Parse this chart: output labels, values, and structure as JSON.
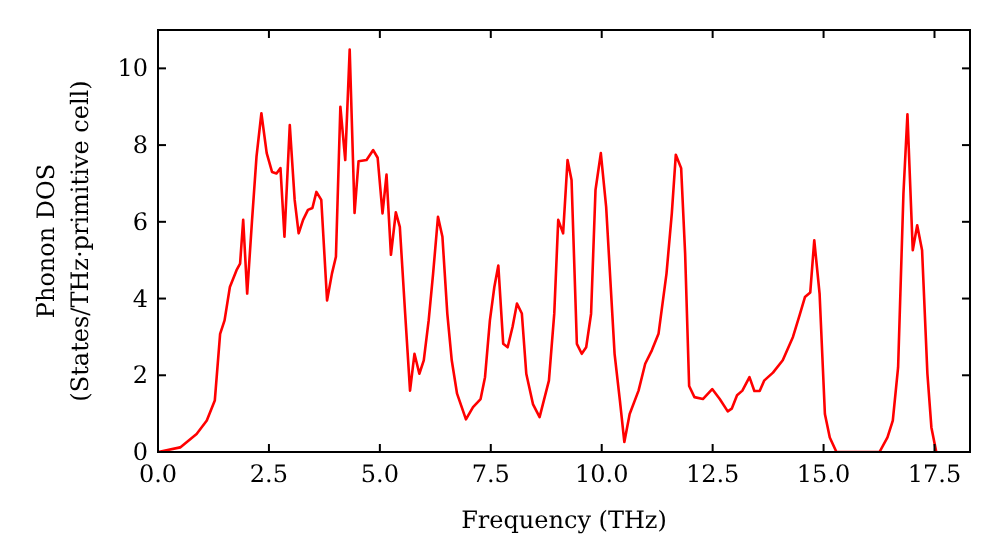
{
  "chart_data": {
    "type": "line",
    "xlabel": "Frequency (THz)",
    "ylabel": "Phonon DOS\n(States/THz·primitive cell)",
    "xlim": [
      0,
      18.3
    ],
    "ylim": [
      0,
      11
    ],
    "xticks": [
      {
        "value": 0,
        "label": "0.0"
      },
      {
        "value": 2.5,
        "label": "2.5"
      },
      {
        "value": 5,
        "label": "5.0"
      },
      {
        "value": 7.5,
        "label": "7.5"
      },
      {
        "value": 10,
        "label": "10.0"
      },
      {
        "value": 12.5,
        "label": "12.5"
      },
      {
        "value": 15,
        "label": "15.0"
      },
      {
        "value": 17.5,
        "label": "17.5"
      }
    ],
    "yticks": [
      0,
      2,
      4,
      6,
      8,
      10
    ],
    "grid": false,
    "marker": "none",
    "line_style": "solid",
    "series": [
      {
        "color": "#ff0000",
        "x": [
          0,
          0.5,
          0.87,
          1.1,
          1.28,
          1.4,
          1.5,
          1.62,
          1.77,
          1.85,
          1.92,
          2.01,
          2.12,
          2.22,
          2.33,
          2.45,
          2.57,
          2.67,
          2.76,
          2.85,
          2.97,
          3.08,
          3.17,
          3.27,
          3.38,
          3.48,
          3.57,
          3.68,
          3.81,
          3.92,
          4.01,
          4.11,
          4.22,
          4.32,
          4.43,
          4.52,
          4.7,
          4.85,
          4.95,
          5.06,
          5.15,
          5.25,
          5.36,
          5.45,
          5.57,
          5.68,
          5.78,
          5.89,
          5.99,
          6.1,
          6.2,
          6.31,
          6.41,
          6.52,
          6.62,
          6.74,
          6.94,
          7.1,
          7.27,
          7.37,
          7.48,
          7.58,
          7.67,
          7.78,
          7.88,
          7.99,
          8.09,
          8.2,
          8.3,
          8.45,
          8.6,
          8.81,
          8.93,
          9.02,
          9.13,
          9.23,
          9.32,
          9.44,
          9.55,
          9.65,
          9.76,
          9.86,
          9.98,
          10.1,
          10.29,
          10.41,
          10.51,
          10.63,
          10.83,
          10.98,
          11.13,
          11.28,
          11.46,
          11.58,
          11.67,
          11.79,
          11.88,
          11.97,
          12.09,
          12.28,
          12.49,
          12.66,
          12.84,
          12.93,
          13.05,
          13.17,
          13.33,
          13.44,
          13.56,
          13.66,
          13.86,
          14.08,
          14.31,
          14.46,
          14.58,
          14.7,
          14.79,
          14.91,
          15.03,
          15.14,
          15.29,
          16.26,
          16.44,
          16.56,
          16.68,
          16.8,
          16.89,
          17.01,
          17.11,
          17.22,
          17.34,
          17.43,
          17.54
        ],
        "values": [
          0,
          0.12,
          0.47,
          0.82,
          1.34,
          3.08,
          3.43,
          4.3,
          4.74,
          4.91,
          6.05,
          4.13,
          6.05,
          7.7,
          8.83,
          7.79,
          7.3,
          7.26,
          7.4,
          5.61,
          8.52,
          6.57,
          5.7,
          6.05,
          6.31,
          6.36,
          6.78,
          6.57,
          3.95,
          4.65,
          5.09,
          9.0,
          7.61,
          10.49,
          6.23,
          7.58,
          7.61,
          7.87,
          7.67,
          6.22,
          7.23,
          5.14,
          6.25,
          5.87,
          3.61,
          1.6,
          2.56,
          2.04,
          2.39,
          3.43,
          4.65,
          6.13,
          5.61,
          3.61,
          2.39,
          1.52,
          0.85,
          1.17,
          1.38,
          1.95,
          3.43,
          4.3,
          4.86,
          2.82,
          2.73,
          3.26,
          3.87,
          3.61,
          2.04,
          1.25,
          0.91,
          1.86,
          3.6,
          6.05,
          5.7,
          7.61,
          7.09,
          2.82,
          2.56,
          2.73,
          3.6,
          6.83,
          7.79,
          6.39,
          2.56,
          1.34,
          0.26,
          0.99,
          1.6,
          2.3,
          2.65,
          3.08,
          4.65,
          6.22,
          7.75,
          7.4,
          5.17,
          1.72,
          1.43,
          1.38,
          1.64,
          1.38,
          1.06,
          1.13,
          1.48,
          1.6,
          1.95,
          1.59,
          1.59,
          1.86,
          2.07,
          2.39,
          3.0,
          3.57,
          4.04,
          4.16,
          5.52,
          4.13,
          0.99,
          0.38,
          0,
          0,
          0.38,
          0.82,
          2.21,
          6.74,
          8.8,
          5.26,
          5.91,
          5.26,
          2.04,
          0.64,
          0
        ]
      }
    ]
  }
}
